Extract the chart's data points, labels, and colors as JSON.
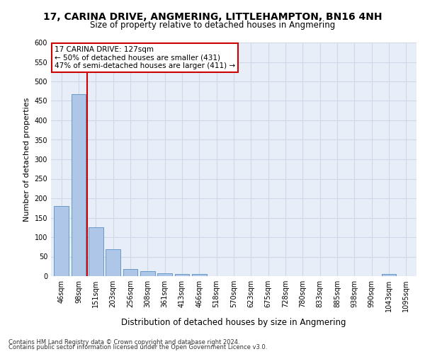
{
  "title": "17, CARINA DRIVE, ANGMERING, LITTLEHAMPTON, BN16 4NH",
  "subtitle": "Size of property relative to detached houses in Angmering",
  "xlabel": "Distribution of detached houses by size in Angmering",
  "ylabel": "Number of detached properties",
  "bar_labels": [
    "46sqm",
    "98sqm",
    "151sqm",
    "203sqm",
    "256sqm",
    "308sqm",
    "361sqm",
    "413sqm",
    "466sqm",
    "518sqm",
    "570sqm",
    "623sqm",
    "675sqm",
    "728sqm",
    "780sqm",
    "833sqm",
    "885sqm",
    "938sqm",
    "990sqm",
    "1043sqm",
    "1095sqm"
  ],
  "bar_values": [
    180,
    468,
    126,
    70,
    18,
    12,
    7,
    5,
    5,
    0,
    0,
    0,
    0,
    0,
    0,
    0,
    0,
    0,
    0,
    5,
    0
  ],
  "bar_color": "#aec6e8",
  "bar_edge_color": "#5a8fc2",
  "vline_color": "#cc0000",
  "ylim": [
    0,
    600
  ],
  "yticks": [
    0,
    50,
    100,
    150,
    200,
    250,
    300,
    350,
    400,
    450,
    500,
    550,
    600
  ],
  "annotation_text": "17 CARINA DRIVE: 127sqm\n← 50% of detached houses are smaller (431)\n47% of semi-detached houses are larger (411) →",
  "annotation_box_color": "#ffffff",
  "annotation_box_edge_color": "#cc0000",
  "footer_line1": "Contains HM Land Registry data © Crown copyright and database right 2024.",
  "footer_line2": "Contains public sector information licensed under the Open Government Licence v3.0.",
  "grid_color": "#d0d8e8",
  "background_color": "#e8eef8",
  "title_fontsize": 10,
  "subtitle_fontsize": 8.5,
  "ylabel_fontsize": 8,
  "xlabel_fontsize": 8.5,
  "tick_fontsize": 7,
  "annotation_fontsize": 7.5,
  "footer_fontsize": 6
}
